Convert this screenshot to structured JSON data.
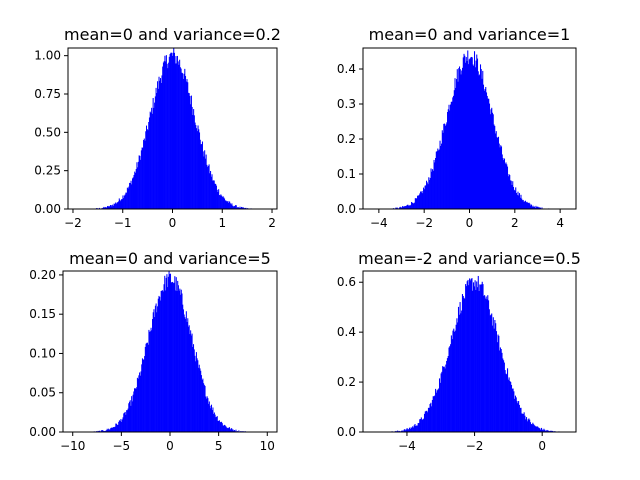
{
  "chart_data": [
    {
      "type": "histogram",
      "title": "mean=0 and variance=0.2",
      "mean": 0,
      "variance": 0.2,
      "xlim": [
        -2.1,
        2.1
      ],
      "ylim": [
        0,
        1.05
      ],
      "xticks": [
        -2,
        -1,
        0,
        1,
        2
      ],
      "yticks": [
        0.0,
        0.25,
        0.5,
        0.75,
        1.0
      ],
      "xtick_labels": [
        "−2",
        "−1",
        "0",
        "1",
        "2"
      ],
      "ytick_labels": [
        "0.00",
        "0.25",
        "0.50",
        "0.75",
        "1.00"
      ],
      "peak_density": 1.0,
      "color": "#0000ff",
      "grid": false
    },
    {
      "type": "histogram",
      "title": "mean=0 and variance=1",
      "mean": 0,
      "variance": 1,
      "xlim": [
        -4.7,
        4.7
      ],
      "ylim": [
        0,
        0.46
      ],
      "xticks": [
        -4,
        -2,
        0,
        2,
        4
      ],
      "yticks": [
        0.0,
        0.1,
        0.2,
        0.3,
        0.4
      ],
      "xtick_labels": [
        "−4",
        "−2",
        "0",
        "2",
        "4"
      ],
      "ytick_labels": [
        "0.0",
        "0.1",
        "0.2",
        "0.3",
        "0.4"
      ],
      "peak_density": 0.44,
      "color": "#0000ff",
      "grid": false
    },
    {
      "type": "histogram",
      "title": "mean=0 and variance=5",
      "mean": 0,
      "variance": 5,
      "xlim": [
        -11,
        11
      ],
      "ylim": [
        0,
        0.205
      ],
      "xticks": [
        -10,
        -5,
        0,
        5,
        10
      ],
      "yticks": [
        0.0,
        0.05,
        0.1,
        0.15,
        0.2
      ],
      "xtick_labels": [
        "−10",
        "−5",
        "0",
        "5",
        "10"
      ],
      "ytick_labels": [
        "0.00",
        "0.05",
        "0.10",
        "0.15",
        "0.20"
      ],
      "peak_density": 0.195,
      "color": "#0000ff",
      "grid": false
    },
    {
      "type": "histogram",
      "title": "mean=-2 and variance=0.5",
      "mean": -2,
      "variance": 0.5,
      "xlim": [
        -5.3,
        1.0
      ],
      "ylim": [
        0,
        0.645
      ],
      "xticks": [
        -4,
        -2,
        0
      ],
      "yticks": [
        0.0,
        0.2,
        0.4,
        0.6
      ],
      "xtick_labels": [
        "−4",
        "−2",
        "0"
      ],
      "ytick_labels": [
        "0.0",
        "0.2",
        "0.4",
        "0.6"
      ],
      "peak_density": 0.6,
      "color": "#0000ff",
      "grid": false
    }
  ]
}
